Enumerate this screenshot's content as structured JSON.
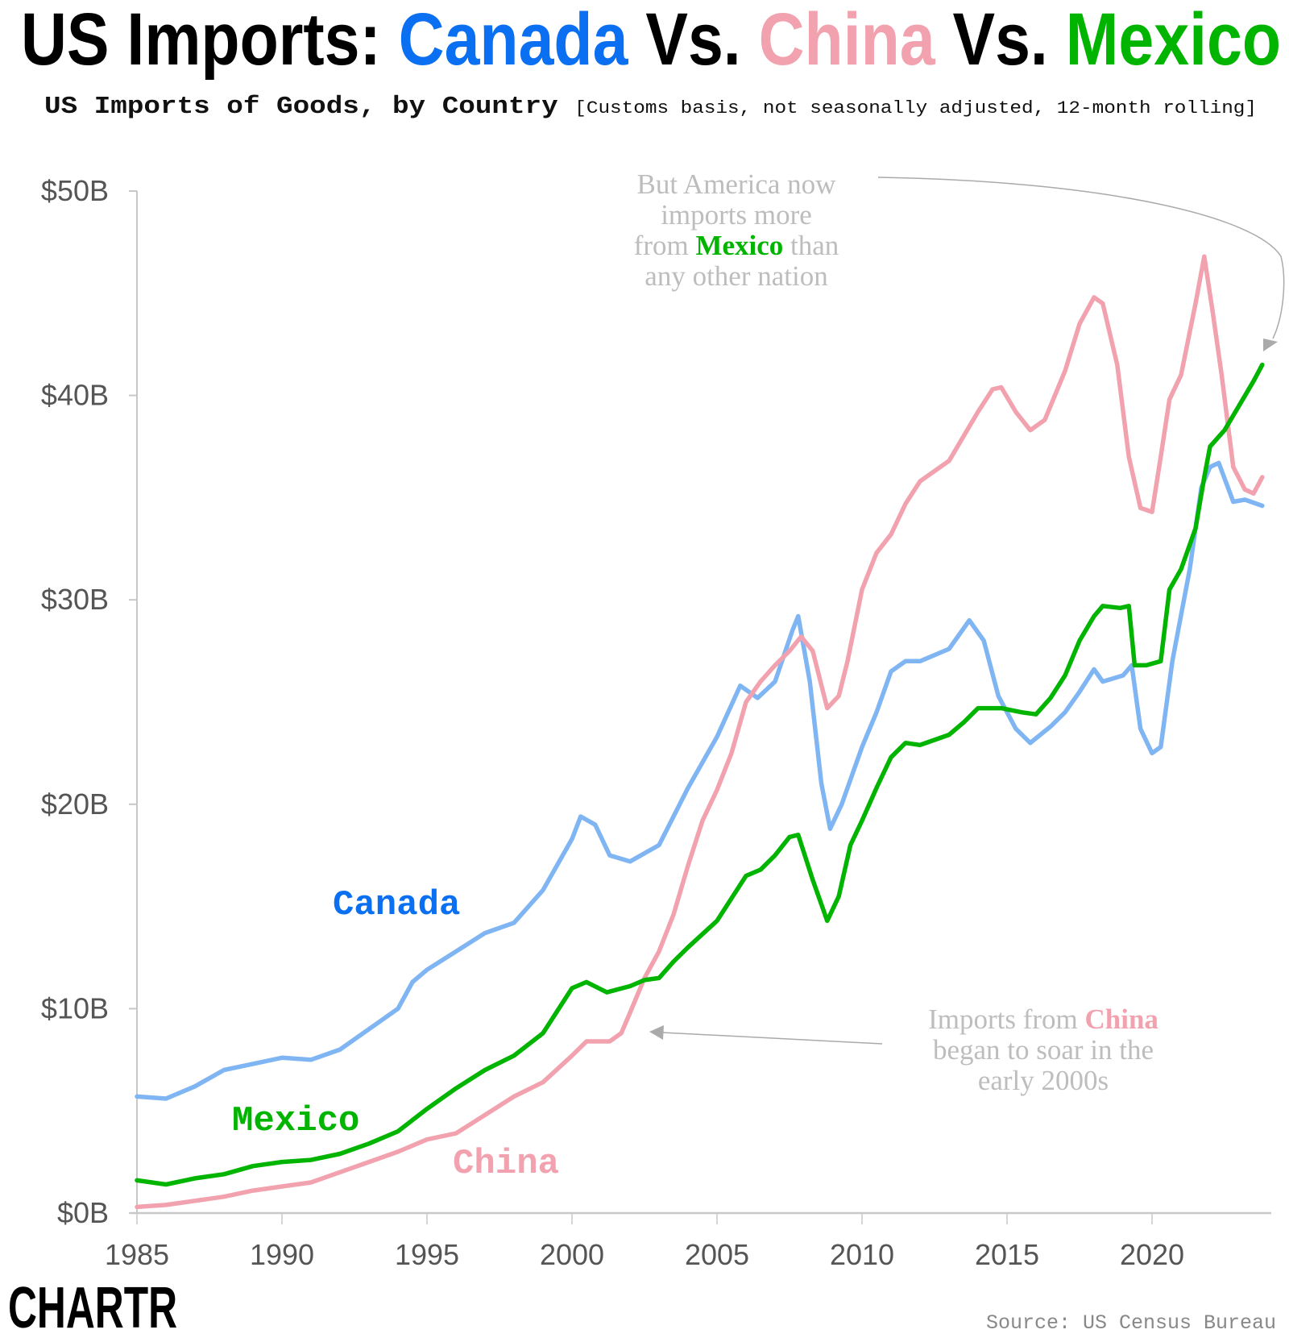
{
  "title": {
    "prefix": "US Imports: ",
    "canada": "Canada",
    "vs1": " Vs. ",
    "china": "China",
    "vs2": " Vs. ",
    "mexico": "Mexico"
  },
  "subtitle": {
    "main": "US Imports of Goods, by Country ",
    "note": "[Customs basis, not seasonally adjusted, 12-month rolling]"
  },
  "annotations": {
    "mexico": {
      "line1": "But America now",
      "line2": "imports more",
      "line3_pre": "from ",
      "line3_hl": "Mexico",
      "line3_post": " than",
      "line4": "any other nation"
    },
    "china": {
      "line1_pre": "Imports from ",
      "line1_hl": "China",
      "line2": "began to soar in the",
      "line3": "early 2000s"
    }
  },
  "source": "Source: US Census Bureau",
  "logo": "CHARTR",
  "colors": {
    "canada_title": "#0a6ff0",
    "canada_line": "#7fb5f2",
    "china": "#f2a2ae",
    "mexico": "#00b400",
    "annotation": "#bdbdbd",
    "axis": "#c8c8c8"
  },
  "chart_data": {
    "type": "line",
    "title": "US Imports: Canada Vs. China Vs. Mexico",
    "subtitle": "US Imports of Goods, by Country [Customs basis, not seasonally adjusted, 12-month rolling]",
    "xlabel": "",
    "ylabel": "",
    "xlim": [
      1985,
      2024
    ],
    "ylim": [
      0,
      50
    ],
    "x_ticks": [
      "1985",
      "1990",
      "1995",
      "2000",
      "2005",
      "2010",
      "2015",
      "2020"
    ],
    "y_ticks": [
      "$0B",
      "$10B",
      "$20B",
      "$30B",
      "$40B",
      "$50B"
    ],
    "grid": false,
    "legend": "inline labels",
    "series": [
      {
        "name": "Canada",
        "color": "#7fb5f2",
        "x": [
          1985,
          1986,
          1987,
          1988,
          1989,
          1990,
          1991,
          1992,
          1993,
          1994,
          1994.5,
          1995,
          1996,
          1997,
          1998,
          1999,
          2000,
          2000.3,
          2000.8,
          2001.3,
          2002,
          2003,
          2004,
          2005,
          2005.8,
          2006.4,
          2007,
          2007.6,
          2007.8,
          2008.2,
          2008.6,
          2008.9,
          2009.3,
          2010,
          2010.5,
          2011,
          2011.5,
          2012,
          2013,
          2013.7,
          2014.2,
          2014.7,
          2015.3,
          2015.8,
          2016.5,
          2017,
          2017.5,
          2018,
          2018.3,
          2019,
          2019.3,
          2019.6,
          2020,
          2020.3,
          2020.7,
          2021.3,
          2021.7,
          2022,
          2022.3,
          2022.8,
          2023.2,
          2023.8
        ],
        "y": [
          5.7,
          5.6,
          6.2,
          7.0,
          7.3,
          7.6,
          7.5,
          8.0,
          9.0,
          10.0,
          11.3,
          11.9,
          12.8,
          13.7,
          14.2,
          15.8,
          18.3,
          19.4,
          19.0,
          17.5,
          17.2,
          18.0,
          20.8,
          23.3,
          25.8,
          25.2,
          26.0,
          28.5,
          29.2,
          26.0,
          21.0,
          18.8,
          20.0,
          22.8,
          24.5,
          26.5,
          27.0,
          27.0,
          27.6,
          29.0,
          28.0,
          25.3,
          23.7,
          23.0,
          23.8,
          24.5,
          25.5,
          26.6,
          26.0,
          26.3,
          26.8,
          23.7,
          22.5,
          22.8,
          27.0,
          31.5,
          35.5,
          36.5,
          36.7,
          34.8,
          34.9,
          34.6
        ]
      },
      {
        "name": "China",
        "color": "#f2a2ae",
        "x": [
          1985,
          1986,
          1987,
          1988,
          1989,
          1990,
          1991,
          1992,
          1993,
          1994,
          1995,
          1996,
          1997,
          1998,
          1999,
          2000,
          2000.5,
          2001.3,
          2001.7,
          2002,
          2002.5,
          2003,
          2003.5,
          2004,
          2004.5,
          2005,
          2005.5,
          2006,
          2006.5,
          2007,
          2007.5,
          2007.9,
          2008.3,
          2008.8,
          2009.2,
          2009.5,
          2010,
          2010.5,
          2011,
          2011.5,
          2012,
          2013,
          2013.5,
          2014,
          2014.5,
          2014.8,
          2015.3,
          2015.8,
          2016.3,
          2017,
          2017.5,
          2018,
          2018.3,
          2018.8,
          2019.2,
          2019.6,
          2020,
          2020.3,
          2020.6,
          2021,
          2021.5,
          2021.8,
          2022.1,
          2022.4,
          2022.8,
          2023.2,
          2023.5,
          2023.8
        ],
        "y": [
          0.3,
          0.4,
          0.6,
          0.8,
          1.1,
          1.3,
          1.5,
          2.0,
          2.5,
          3.0,
          3.6,
          3.9,
          4.8,
          5.7,
          6.4,
          7.7,
          8.4,
          8.4,
          8.8,
          9.8,
          11.5,
          12.8,
          14.6,
          17.0,
          19.2,
          20.7,
          22.5,
          25.0,
          26.0,
          26.8,
          27.5,
          28.2,
          27.5,
          24.7,
          25.3,
          27.0,
          30.5,
          32.3,
          33.2,
          34.7,
          35.8,
          36.8,
          38.0,
          39.2,
          40.3,
          40.4,
          39.2,
          38.3,
          38.8,
          41.2,
          43.5,
          44.8,
          44.5,
          41.5,
          37.0,
          34.5,
          34.3,
          37.0,
          39.8,
          41.0,
          44.5,
          46.8,
          44.0,
          41.0,
          36.5,
          35.4,
          35.2,
          36.0
        ]
      },
      {
        "name": "Mexico",
        "color": "#00b400",
        "x": [
          1985,
          1986,
          1987,
          1988,
          1989,
          1990,
          1991,
          1992,
          1993,
          1994,
          1995,
          1996,
          1997,
          1998,
          1999,
          2000,
          2000.5,
          2001.2,
          2002,
          2002.5,
          2003,
          2003.5,
          2004,
          2005,
          2006,
          2006.5,
          2007,
          2007.5,
          2007.8,
          2008.3,
          2008.8,
          2009.2,
          2009.6,
          2010,
          2010.5,
          2011,
          2011.5,
          2012,
          2013,
          2013.5,
          2014,
          2014.8,
          2015.5,
          2016,
          2016.5,
          2017,
          2017.5,
          2018,
          2018.3,
          2018.9,
          2019.2,
          2019.4,
          2019.8,
          2020.3,
          2020.6,
          2021,
          2021.5,
          2021.8,
          2022,
          2022.5,
          2023,
          2023.5,
          2023.8
        ],
        "y": [
          1.6,
          1.4,
          1.7,
          1.9,
          2.3,
          2.5,
          2.6,
          2.9,
          3.4,
          4.0,
          5.1,
          6.1,
          7.0,
          7.7,
          8.8,
          11.0,
          11.3,
          10.8,
          11.1,
          11.4,
          11.5,
          12.3,
          13.0,
          14.3,
          16.5,
          16.8,
          17.5,
          18.4,
          18.5,
          16.3,
          14.3,
          15.5,
          18.0,
          19.2,
          20.8,
          22.3,
          23.0,
          22.9,
          23.4,
          24.0,
          24.7,
          24.7,
          24.5,
          24.4,
          25.2,
          26.3,
          28.0,
          29.2,
          29.7,
          29.6,
          29.7,
          26.8,
          26.8,
          27.0,
          30.5,
          31.5,
          33.5,
          36.0,
          37.5,
          38.3,
          39.5,
          40.7,
          41.5
        ]
      }
    ]
  }
}
